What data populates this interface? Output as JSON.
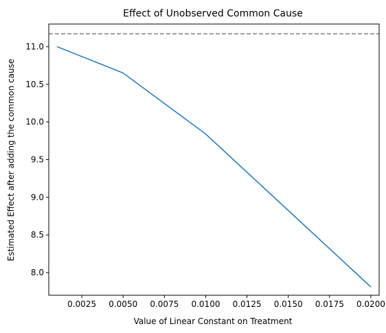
{
  "chart_data": {
    "type": "line",
    "title": "Effect of Unobserved Common Cause",
    "xlabel": "Value of Linear Constant on Treatment",
    "ylabel": "Estimated Effect after adding the common cause",
    "xlim": [
      0.0005,
      0.0205
    ],
    "ylim": [
      7.7,
      11.3
    ],
    "x_ticks": [
      0.0025,
      0.005,
      0.0075,
      0.01,
      0.0125,
      0.015,
      0.0175,
      0.02
    ],
    "x_tick_labels": [
      "0.0025",
      "0.0050",
      "0.0075",
      "0.0100",
      "0.0125",
      "0.0150",
      "0.0175",
      "0.0200"
    ],
    "y_ticks": [
      8.0,
      8.5,
      9.0,
      9.5,
      10.0,
      10.5,
      11.0
    ],
    "y_tick_labels": [
      "8.0",
      "8.5",
      "9.0",
      "9.5",
      "10.0",
      "10.5",
      "11.0"
    ],
    "grid": false,
    "series": [
      {
        "x": [
          0.001,
          0.005,
          0.01,
          0.02
        ],
        "y": [
          11.0,
          10.65,
          9.84,
          7.81
        ],
        "color": "#1f77b4",
        "line_style": "solid"
      }
    ],
    "reference_lines": [
      {
        "orientation": "horizontal",
        "y": 11.17,
        "color": "#808080",
        "line_style": "dashed"
      }
    ]
  }
}
